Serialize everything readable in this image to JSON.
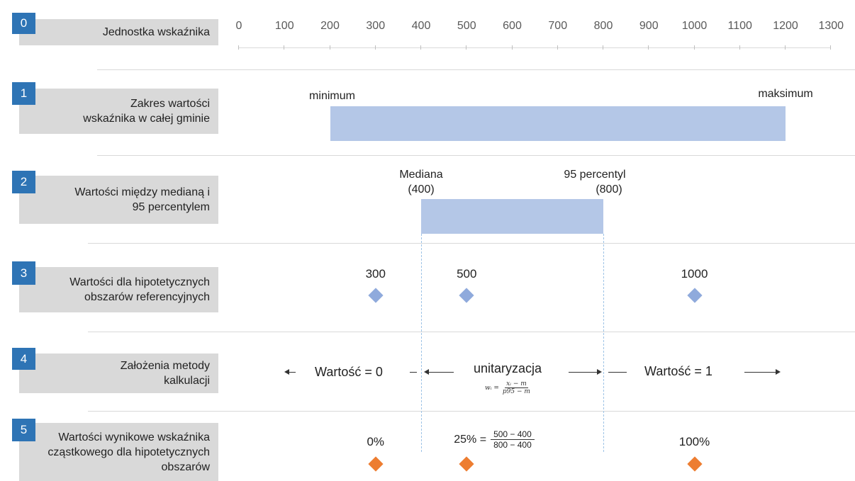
{
  "rows": [
    {
      "num": "0",
      "label": "Jednostka wskaźnika"
    },
    {
      "num": "1",
      "label": "Zakres wartości wskaźnika w całej gminie"
    },
    {
      "num": "2",
      "label": "Wartości między medianą i 95 percentylem"
    },
    {
      "num": "3",
      "label": "Wartości dla hipotetycznych obszarów referencyjnych"
    },
    {
      "num": "4",
      "label": "Założenia metody kalkulacji"
    },
    {
      "num": "5",
      "label": "Wartości wynikowe wskaźnika cząstkowego dla hipotetycznych obszarów"
    }
  ],
  "axis": {
    "ticks": [
      0,
      100,
      200,
      300,
      400,
      500,
      600,
      700,
      800,
      900,
      1000,
      1100,
      1200,
      1300
    ],
    "tick_labels": [
      "0",
      "100",
      "200",
      "300",
      "400",
      "500",
      "600",
      "700",
      "800",
      "900",
      "1000",
      "1100",
      "1200",
      "1300"
    ]
  },
  "range_bar": {
    "from": 200,
    "to": 1200,
    "min_label": "minimum",
    "max_label": "maksimum"
  },
  "iqr_bar": {
    "from": 400,
    "to": 800,
    "median_label": "Mediana",
    "median_value": "(400)",
    "p95_label": "95 percentyl",
    "p95_value": "(800)"
  },
  "reference_points": [
    {
      "value": 300,
      "label": "300"
    },
    {
      "value": 500,
      "label": "500"
    },
    {
      "value": 1000,
      "label": "1000"
    }
  ],
  "method": {
    "left_label": "Wartość = 0",
    "middle_label": "unitaryzacja",
    "right_label": "Wartość = 1",
    "formula_lhs": "wᵢ =",
    "formula_num": "xᵢ − m",
    "formula_den": "p95 − m"
  },
  "results": [
    {
      "value": 300,
      "label": "0%"
    },
    {
      "value": 500,
      "label": "25% =",
      "calc_num": "500 − 400",
      "calc_den": "800 − 400"
    },
    {
      "value": 1000,
      "label": "100%"
    }
  ],
  "colors": {
    "bar": "#b4c7e7",
    "badge": "#2e74b5",
    "blue_marker": "#8faadc",
    "orange_marker": "#ed7d31",
    "label_bg": "#d9d9d9"
  }
}
